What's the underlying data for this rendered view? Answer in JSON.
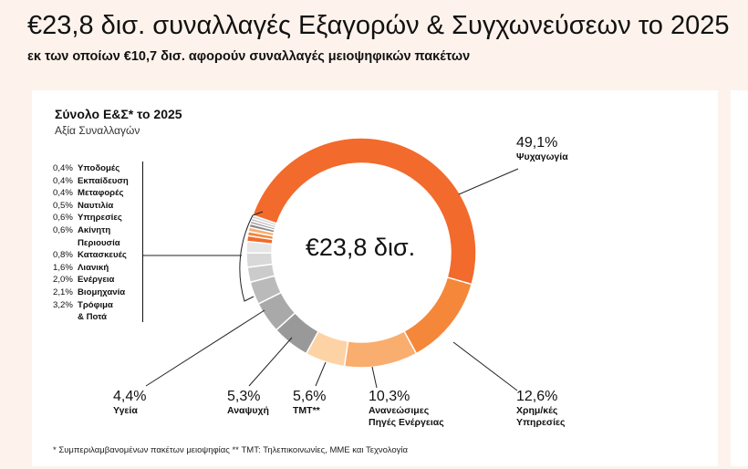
{
  "header": {
    "title": "€23,8 δισ. συναλλαγές Εξαγορών & Συγχωνεύσεων το 2025",
    "subtitle": "εκ των οποίων €10,7 δισ. αφορούν συναλλαγές μειοψηφικών πακέτων"
  },
  "chart_data": {
    "type": "pie",
    "title": "Σύνολο Ε&Σ* το 2025",
    "subtitle": "Αξία Συναλλαγών",
    "center_label": "€23,8 δισ.",
    "series": [
      {
        "name": "Ψυχαγωγία",
        "value": 49.1,
        "label": "49,1%",
        "color": "#f26a2c"
      },
      {
        "name": "Χρημ/κές Υπηρεσίες",
        "value": 12.6,
        "label": "12,6%",
        "color": "#f5873a"
      },
      {
        "name": "Ανανεώσιμες Πηγές Ενέργειας",
        "value": 10.3,
        "label": "10,3%",
        "color": "#f9ad6f"
      },
      {
        "name": "TMT**",
        "value": 5.6,
        "label": "5,6%",
        "color": "#fdd3a6"
      },
      {
        "name": "Αναψυχή",
        "value": 5.3,
        "label": "5,3%",
        "color": "#999999"
      },
      {
        "name": "Υγεία",
        "value": 4.4,
        "label": "4,4%",
        "color": "#a9a9a9"
      },
      {
        "name": "Τρόφιμα & Ποτά",
        "value": 3.2,
        "label": "3,2%",
        "color": "#bababa"
      },
      {
        "name": "Βιομηχανία",
        "value": 2.1,
        "label": "2,1%",
        "color": "#cbcbcb"
      },
      {
        "name": "Ενέργεια",
        "value": 2.0,
        "label": "2,0%",
        "color": "#d8d8d8"
      },
      {
        "name": "Λιανική",
        "value": 1.6,
        "label": "1,6%",
        "color": "#e6e6e6"
      },
      {
        "name": "Κατασκευές",
        "value": 0.8,
        "label": "0,8%",
        "color": "#f26a2c"
      },
      {
        "name": "Ακίνητη Περιουσία",
        "value": 0.6,
        "label": "0,6%",
        "color": "#f5873a"
      },
      {
        "name": "Υπηρεσίες",
        "value": 0.6,
        "label": "0,6%",
        "color": "#f9ad6f"
      },
      {
        "name": "Ναυτιλία",
        "value": 0.5,
        "label": "0,5%",
        "color": "#888888"
      },
      {
        "name": "Μεταφορές",
        "value": 0.4,
        "label": "0,4%",
        "color": "#a0a0a0"
      },
      {
        "name": "Εκπαίδευση",
        "value": 0.4,
        "label": "0,4%",
        "color": "#bdbdbd"
      },
      {
        "name": "Υποδομές",
        "value": 0.4,
        "label": "0,4%",
        "color": "#d0d0d0"
      }
    ]
  },
  "small_legend": [
    {
      "p": "0,4%",
      "n": "Υποδομές"
    },
    {
      "p": "0,4%",
      "n": "Εκπαίδευση"
    },
    {
      "p": "0,4%",
      "n": "Μεταφορές"
    },
    {
      "p": "0,5%",
      "n": "Ναυτιλία"
    },
    {
      "p": "0,6%",
      "n": "Υπηρεσίες"
    },
    {
      "p": "0,6%",
      "n": "Ακίνητη"
    },
    {
      "p": "",
      "n": "Περιουσία"
    },
    {
      "p": "0,8%",
      "n": "Κατασκευές"
    },
    {
      "p": "1,6%",
      "n": "Λιανική"
    },
    {
      "p": "2,0%",
      "n": "Ενέργεια"
    },
    {
      "p": "2,1%",
      "n": "Βιομηχανία"
    },
    {
      "p": "3,2%",
      "n": "Τρόφιμα"
    },
    {
      "p": "",
      "n": "& Ποτά"
    }
  ],
  "labels": {
    "psych": {
      "p": "49,1%",
      "n": "Ψυχαγωγία"
    },
    "fin": {
      "p": "12,6%",
      "n1": "Χρημ/κές",
      "n2": "Υπηρεσίες"
    },
    "ren": {
      "p": "10,3%",
      "n1": "Ανανεώσιμες",
      "n2": "Πηγές Ενέργειας"
    },
    "tmt": {
      "p": "5,6%",
      "n": "TMT**"
    },
    "rec": {
      "p": "5,3%",
      "n": "Αναψυχή"
    },
    "health": {
      "p": "4,4%",
      "n": "Υγεία"
    }
  },
  "footnote": "* Συμπεριλαμβανομένων πακέτων μειοψηφίας   ** TMT: Τηλεπικοινωνίες, ΜΜΕ και Τεχνολογία"
}
